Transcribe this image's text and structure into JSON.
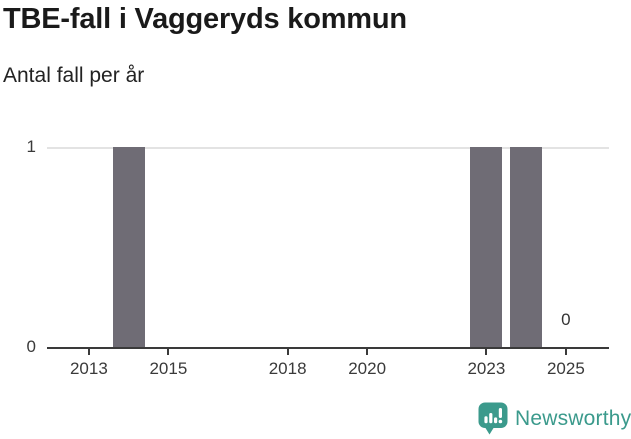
{
  "header": {
    "title": "TBE-fall i Vaggeryds kommun",
    "subtitle": "Antal fall per år"
  },
  "brand": {
    "name": "Newsworthy",
    "color": "#3B9A8C"
  },
  "chart_data": {
    "type": "bar",
    "title": "TBE-fall i Vaggeryds kommun",
    "subtitle": "Antal fall per år",
    "series_name": "Antal fall",
    "x": [
      2012,
      2013,
      2014,
      2015,
      2016,
      2017,
      2018,
      2019,
      2020,
      2021,
      2022,
      2023,
      2024,
      2025
    ],
    "values": [
      0,
      0,
      1,
      0,
      0,
      0,
      0,
      0,
      0,
      0,
      0,
      1,
      1,
      0
    ],
    "xticks": [
      2013,
      2015,
      2018,
      2020,
      2023,
      2025
    ],
    "yticks": [
      {
        "value": 0,
        "label": "0"
      },
      {
        "value": 1,
        "label": "1"
      }
    ],
    "ylim": [
      0,
      1
    ],
    "xlabel": "",
    "ylabel": "",
    "legend": false,
    "grid": "horizontal line at y=1 only",
    "annotations": [
      {
        "x": 2025,
        "text": "0"
      }
    ],
    "colors": {
      "bar": "#6F6C75",
      "axis": "#3a3a3a",
      "grid": "#e3e3e3",
      "text": "#333333",
      "title": "#1a1a1a"
    }
  }
}
